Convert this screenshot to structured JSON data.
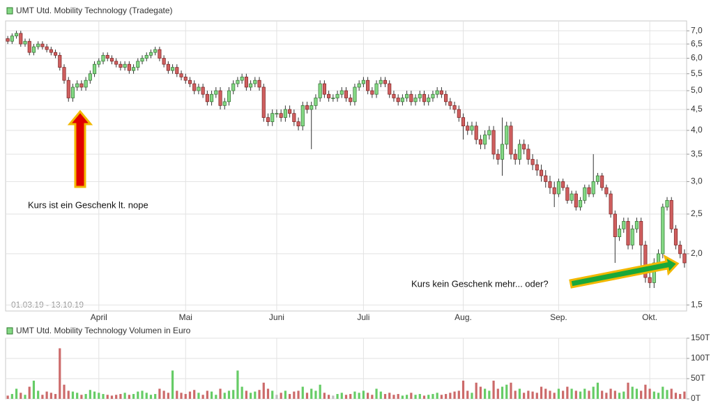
{
  "chart_data": [
    {
      "type": "candlestick",
      "title": "UMT Utd. Mobility Technology (Tradegate)",
      "subtitle": "01.03.19 - 13.10.19",
      "annotations": [
        "Kurs ist ein Geschenk lt. nope",
        "Kurs kein Geschenk mehr... oder?"
      ],
      "categories": [
        null,
        null,
        null,
        null,
        null,
        null,
        null,
        null,
        null,
        null,
        null,
        null,
        null,
        null,
        null,
        null,
        null,
        null,
        null,
        null,
        null,
        "April",
        null,
        null,
        null,
        null,
        null,
        null,
        null,
        null,
        null,
        null,
        null,
        null,
        null,
        null,
        null,
        null,
        null,
        null,
        null,
        "Mai",
        null,
        null,
        null,
        null,
        null,
        null,
        null,
        null,
        null,
        null,
        null,
        null,
        null,
        null,
        null,
        null,
        null,
        null,
        null,
        null,
        "Juni",
        null,
        null,
        null,
        null,
        null,
        null,
        null,
        null,
        null,
        null,
        null,
        null,
        null,
        null,
        null,
        null,
        null,
        null,
        null,
        "Juli",
        null,
        null,
        null,
        null,
        null,
        null,
        null,
        null,
        null,
        null,
        null,
        null,
        null,
        null,
        null,
        null,
        null,
        null,
        null,
        null,
        null,
        null,
        "Aug.",
        null,
        null,
        null,
        null,
        null,
        null,
        null,
        null,
        null,
        null,
        null,
        null,
        null,
        null,
        null,
        null,
        null,
        null,
        null,
        null,
        null,
        "Sep.",
        null,
        null,
        null,
        null,
        null,
        null,
        null,
        null,
        null,
        null,
        null,
        null,
        null,
        null,
        null,
        null,
        null,
        null,
        null,
        null,
        "Okt.",
        null,
        null,
        null,
        null,
        null,
        null,
        null,
        null
      ],
      "open": [
        6.7,
        6.6,
        6.8,
        6.9,
        6.5,
        6.6,
        6.2,
        6.4,
        6.5,
        6.4,
        6.3,
        6.2,
        6.1,
        5.7,
        5.3,
        4.8,
        5.1,
        5.2,
        5.1,
        5.3,
        5.5,
        5.8,
        5.9,
        6.1,
        6.0,
        5.9,
        5.8,
        5.7,
        5.8,
        5.6,
        5.7,
        5.9,
        6.0,
        6.1,
        6.2,
        6.3,
        6.0,
        5.8,
        5.6,
        5.7,
        5.5,
        5.4,
        5.3,
        5.2,
        5.0,
        5.1,
        4.9,
        4.7,
        4.9,
        5.0,
        4.6,
        4.7,
        5.0,
        5.2,
        5.3,
        5.4,
        5.1,
        5.2,
        5.3,
        5.1,
        4.3,
        4.2,
        4.4,
        4.4,
        4.3,
        4.5,
        4.4,
        4.2,
        4.1,
        4.6,
        4.5,
        4.6,
        4.8,
        5.2,
        4.9,
        4.8,
        4.8,
        4.9,
        5.0,
        4.8,
        4.7,
        5.1,
        5.2,
        5.3,
        5.0,
        4.9,
        5.2,
        5.3,
        5.2,
        4.9,
        4.8,
        4.7,
        4.8,
        4.9,
        4.7,
        4.8,
        4.9,
        4.7,
        4.8,
        4.9,
        5.0,
        4.9,
        4.7,
        4.6,
        4.5,
        4.3,
        4.1,
        4.0,
        4.1,
        3.8,
        3.7,
        3.9,
        4.0,
        3.5,
        3.4,
        3.7,
        4.1,
        3.5,
        3.4,
        3.7,
        3.6,
        3.4,
        3.3,
        3.2,
        3.1,
        3.0,
        2.9,
        2.8,
        3.0,
        2.9,
        2.7,
        2.8,
        2.6,
        2.7,
        2.9,
        2.8,
        3.0,
        3.1,
        2.9,
        2.8,
        2.5,
        2.2,
        2.3,
        2.4,
        2.1,
        2.3,
        2.4,
        2.1,
        1.75,
        1.7,
        1.9,
        2.0,
        2.6,
        2.7,
        2.3,
        2.1,
        2.0
      ],
      "high": [
        6.8,
        6.9,
        7.0,
        7.0,
        6.7,
        6.7,
        6.5,
        6.6,
        6.6,
        6.5,
        6.4,
        6.3,
        6.2,
        5.8,
        5.4,
        5.2,
        5.3,
        5.3,
        5.4,
        5.6,
        5.9,
        6.0,
        6.2,
        6.2,
        6.1,
        6.0,
        5.9,
        5.9,
        5.9,
        5.8,
        6.0,
        6.1,
        6.2,
        6.3,
        6.4,
        6.4,
        6.1,
        5.9,
        5.8,
        5.8,
        5.6,
        5.5,
        5.4,
        5.3,
        5.2,
        5.2,
        5.0,
        5.0,
        5.1,
        5.1,
        4.8,
        5.1,
        5.3,
        5.4,
        5.5,
        5.5,
        5.3,
        5.4,
        5.4,
        5.2,
        4.4,
        4.5,
        4.5,
        4.5,
        4.6,
        4.6,
        4.5,
        4.3,
        4.7,
        4.7,
        4.7,
        4.9,
        5.3,
        5.3,
        5.0,
        4.9,
        5.0,
        5.1,
        5.1,
        4.9,
        5.2,
        5.3,
        5.4,
        5.4,
        5.1,
        5.3,
        5.4,
        5.4,
        5.3,
        5.0,
        4.9,
        4.9,
        5.0,
        5.0,
        4.9,
        5.0,
        5.0,
        4.9,
        5.0,
        5.1,
        5.1,
        5.0,
        4.8,
        4.7,
        4.6,
        4.4,
        4.2,
        4.2,
        4.2,
        3.9,
        4.0,
        4.1,
        4.1,
        3.6,
        4.3,
        4.2,
        4.2,
        3.6,
        3.8,
        3.8,
        3.7,
        3.5,
        3.4,
        3.3,
        3.2,
        3.1,
        3.0,
        3.05,
        3.05,
        2.95,
        2.85,
        2.85,
        2.75,
        2.95,
        2.95,
        3.5,
        3.15,
        3.15,
        2.95,
        2.85,
        2.55,
        2.35,
        2.45,
        2.45,
        2.35,
        2.45,
        2.45,
        2.15,
        1.8,
        1.95,
        2.05,
        2.65,
        2.75,
        2.75,
        2.35,
        2.15,
        2.05
      ],
      "low": [
        6.5,
        6.5,
        6.7,
        6.4,
        6.4,
        6.1,
        6.1,
        6.3,
        6.3,
        6.2,
        6.1,
        6.0,
        5.6,
        5.2,
        4.7,
        4.7,
        5.0,
        5.0,
        5.0,
        5.2,
        5.4,
        5.7,
        5.8,
        5.9,
        5.8,
        5.7,
        5.6,
        5.6,
        5.5,
        5.5,
        5.6,
        5.8,
        5.9,
        6.0,
        6.1,
        5.9,
        5.7,
        5.5,
        5.5,
        5.4,
        5.3,
        5.2,
        5.1,
        4.9,
        4.9,
        4.8,
        4.6,
        4.6,
        4.8,
        4.5,
        4.5,
        4.6,
        4.9,
        5.1,
        5.2,
        5.0,
        5.0,
        5.1,
        5.0,
        4.2,
        4.1,
        4.1,
        4.3,
        4.2,
        4.2,
        4.3,
        4.1,
        4.0,
        4.0,
        4.4,
        3.6,
        4.5,
        4.7,
        4.8,
        4.7,
        4.7,
        4.7,
        4.8,
        4.7,
        4.6,
        4.6,
        5.0,
        5.1,
        4.9,
        4.8,
        4.8,
        5.1,
        5.1,
        4.8,
        4.7,
        4.6,
        4.6,
        4.7,
        4.6,
        4.6,
        4.7,
        4.6,
        4.6,
        4.7,
        4.8,
        4.8,
        4.6,
        4.5,
        4.4,
        4.2,
        3.8,
        3.9,
        3.9,
        3.7,
        3.6,
        3.6,
        3.8,
        3.4,
        3.3,
        3.1,
        3.6,
        3.4,
        3.3,
        3.3,
        3.5,
        3.3,
        3.2,
        3.1,
        3.0,
        2.9,
        2.8,
        2.6,
        2.75,
        2.85,
        2.65,
        2.65,
        2.55,
        2.55,
        2.65,
        2.75,
        2.75,
        2.95,
        2.85,
        2.75,
        2.45,
        1.9,
        2.15,
        2.25,
        2.05,
        2.05,
        2.25,
        1.8,
        1.7,
        1.65,
        1.65,
        1.85,
        1.95,
        2.55,
        2.25,
        2.05,
        1.95,
        1.85
      ],
      "close": [
        6.6,
        6.8,
        6.9,
        6.5,
        6.6,
        6.2,
        6.4,
        6.5,
        6.4,
        6.3,
        6.2,
        6.1,
        5.7,
        5.3,
        4.8,
        5.1,
        5.2,
        5.1,
        5.3,
        5.5,
        5.8,
        5.9,
        6.1,
        6.0,
        5.9,
        5.8,
        5.7,
        5.8,
        5.6,
        5.7,
        5.9,
        6.0,
        6.1,
        6.2,
        6.3,
        6.0,
        5.8,
        5.6,
        5.7,
        5.5,
        5.4,
        5.3,
        5.2,
        5.0,
        5.1,
        4.9,
        4.7,
        4.9,
        5.0,
        4.6,
        4.7,
        5.0,
        5.2,
        5.3,
        5.4,
        5.1,
        5.2,
        5.3,
        5.1,
        4.3,
        4.2,
        4.4,
        4.4,
        4.3,
        4.5,
        4.4,
        4.2,
        4.1,
        4.6,
        4.5,
        4.6,
        4.8,
        5.2,
        4.9,
        4.8,
        4.8,
        4.9,
        5.0,
        4.8,
        4.7,
        5.1,
        5.2,
        5.3,
        5.0,
        4.9,
        5.2,
        5.3,
        5.2,
        4.9,
        4.8,
        4.7,
        4.8,
        4.9,
        4.7,
        4.8,
        4.9,
        4.7,
        4.8,
        4.9,
        5.0,
        4.9,
        4.7,
        4.6,
        4.5,
        4.3,
        4.1,
        4.0,
        4.1,
        3.8,
        3.7,
        3.9,
        4.0,
        3.5,
        3.4,
        3.7,
        4.1,
        3.5,
        3.4,
        3.7,
        3.6,
        3.4,
        3.3,
        3.2,
        3.1,
        3.0,
        2.9,
        2.8,
        3.0,
        2.9,
        2.7,
        2.8,
        2.6,
        2.7,
        2.9,
        2.8,
        3.0,
        3.1,
        2.9,
        2.8,
        2.5,
        2.2,
        2.3,
        2.4,
        2.1,
        2.3,
        2.4,
        2.1,
        1.75,
        1.7,
        1.9,
        2.0,
        2.6,
        2.7,
        2.3,
        2.1,
        2.0,
        1.9
      ],
      "up_color": "#84d884",
      "down_color": "#cf5f5f",
      "log_scale": true,
      "grid": true,
      "ylim": [
        1.45,
        7.4
      ],
      "yticks": [
        {
          "value": 1.5,
          "label": "1,5"
        },
        {
          "value": 2.0,
          "label": "2,0"
        },
        {
          "value": 2.5,
          "label": "2,5"
        },
        {
          "value": 3.0,
          "label": "3,0"
        },
        {
          "value": 3.5,
          "label": "3,5"
        },
        {
          "value": 4.0,
          "label": "4,0"
        },
        {
          "value": 4.5,
          "label": "4,5"
        },
        {
          "value": 5.0,
          "label": "5,0"
        },
        {
          "value": 5.5,
          "label": "5,5"
        },
        {
          "value": 6.0,
          "label": "6,0"
        },
        {
          "value": 6.5,
          "label": "6,5"
        },
        {
          "value": 7.0,
          "label": "7,0"
        }
      ]
    },
    {
      "type": "bar",
      "title": "UMT Utd. Mobility Technology Volumen in Euro",
      "values": [
        8000,
        12000,
        25000,
        15000,
        10000,
        30000,
        45000,
        20000,
        10000,
        18000,
        15000,
        12000,
        125000,
        35000,
        20000,
        18000,
        15000,
        10000,
        12000,
        22000,
        18000,
        15000,
        12000,
        10000,
        8000,
        10000,
        12000,
        15000,
        10000,
        12000,
        18000,
        20000,
        15000,
        10000,
        12000,
        25000,
        20000,
        15000,
        70000,
        20000,
        15000,
        12000,
        18000,
        22000,
        15000,
        10000,
        20000,
        18000,
        10000,
        25000,
        15000,
        20000,
        22000,
        70000,
        30000,
        20000,
        15000,
        18000,
        22000,
        40000,
        25000,
        20000,
        10000,
        15000,
        20000,
        12000,
        18000,
        20000,
        30000,
        15000,
        25000,
        20000,
        35000,
        15000,
        10000,
        8000,
        12000,
        15000,
        10000,
        12000,
        18000,
        15000,
        20000,
        15000,
        10000,
        25000,
        18000,
        12000,
        15000,
        10000,
        12000,
        8000,
        10000,
        15000,
        10000,
        12000,
        8000,
        10000,
        12000,
        15000,
        10000,
        12000,
        15000,
        18000,
        20000,
        45000,
        20000,
        15000,
        40000,
        30000,
        25000,
        20000,
        45000,
        25000,
        30000,
        35000,
        40000,
        20000,
        25000,
        15000,
        20000,
        18000,
        15000,
        30000,
        25000,
        20000,
        15000,
        25000,
        20000,
        30000,
        25000,
        20000,
        18000,
        25000,
        20000,
        30000,
        40000,
        20000,
        15000,
        25000,
        20000,
        15000,
        18000,
        40000,
        30000,
        25000,
        20000,
        35000,
        25000,
        18000,
        15000,
        30000,
        22000,
        25000,
        15000,
        12000,
        18000
      ],
      "up_color": "#66cc66",
      "down_color": "#cc6a6a",
      "neutral_color": "#bdbdbd",
      "grid": true,
      "ylim": [
        0,
        150000
      ],
      "yticks": [
        {
          "value": 0,
          "label": "0T"
        },
        {
          "value": 50000,
          "label": "50T"
        },
        {
          "value": 100000,
          "label": "100T"
        },
        {
          "value": 150000,
          "label": "150T"
        }
      ]
    }
  ]
}
